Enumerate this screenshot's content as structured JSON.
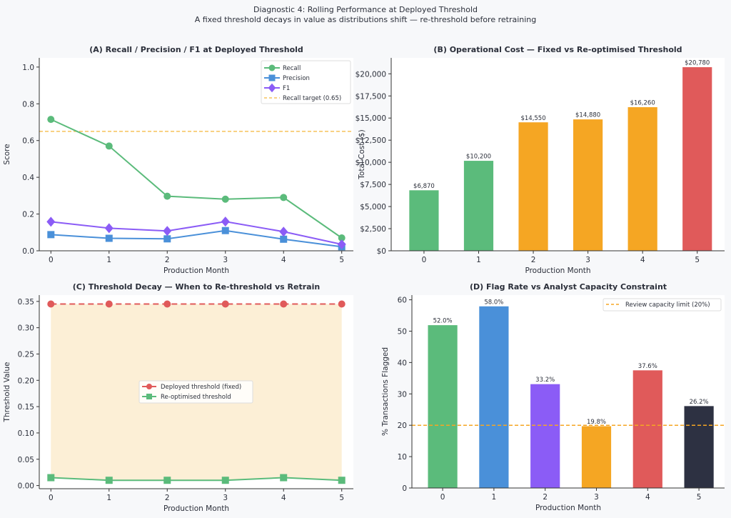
{
  "figure": {
    "title": "Diagnostic 4: Rolling Performance at Deployed Threshold",
    "subtitle": "A fixed threshold decays in value as distributions shift — re-threshold before retraining"
  },
  "chart_data": [
    {
      "id": "A",
      "type": "line",
      "title": "(A) Recall / Precision / F1 at Deployed Threshold",
      "xlabel": "Production Month",
      "ylabel": "Score",
      "x": [
        0,
        1,
        2,
        3,
        4,
        5
      ],
      "xlim": [
        -0.2,
        5.2
      ],
      "ylim": [
        0,
        1.05
      ],
      "yticks": [
        0.0,
        0.2,
        0.4,
        0.6,
        0.8,
        1.0
      ],
      "ytick_labels": [
        "0.0",
        "0.2",
        "0.4",
        "0.6",
        "0.8",
        "1.0"
      ],
      "series": [
        {
          "name": "Recall",
          "values": [
            0.715,
            0.57,
            0.297,
            0.281,
            0.29,
            0.07
          ],
          "color": "#5bbb7b",
          "marker": "circle"
        },
        {
          "name": "Precision",
          "values": [
            0.088,
            0.068,
            0.065,
            0.11,
            0.063,
            0.022
          ],
          "color": "#4a90d9",
          "marker": "square"
        },
        {
          "name": "F1",
          "values": [
            0.158,
            0.123,
            0.108,
            0.159,
            0.104,
            0.035
          ],
          "color": "#8b5cf6",
          "marker": "diamond"
        }
      ],
      "hlines": [
        {
          "name": "Recall target (0.65)",
          "y": 0.65,
          "color": "#f6c35a",
          "style": "dashed"
        }
      ],
      "legend": "top-right",
      "grid": false
    },
    {
      "id": "B",
      "type": "bar",
      "title": "(B) Operational Cost — Fixed vs Re-optimised Threshold",
      "xlabel": "Production Month",
      "ylabel": "Total Cost ($)",
      "categories": [
        "0",
        "1",
        "2",
        "3",
        "4",
        "5"
      ],
      "values": [
        6870,
        10200,
        14550,
        14880,
        16260,
        20780
      ],
      "data_labels": [
        "$6,870",
        "$10,200",
        "$14,550",
        "$14,880",
        "$16,260",
        "$20,780"
      ],
      "colors": [
        "#5bbb7b",
        "#5bbb7b",
        "#f5a623",
        "#f5a623",
        "#f5a623",
        "#e05a5a"
      ],
      "ylim": [
        0,
        21800
      ],
      "yticks": [
        0,
        2500,
        5000,
        7500,
        10000,
        12500,
        15000,
        17500,
        20000
      ],
      "ytick_labels": [
        "$0",
        "$2,500",
        "$5,000",
        "$7,500",
        "$10,000",
        "$12,500",
        "$15,000",
        "$17,500",
        "$20,000"
      ],
      "grid": false
    },
    {
      "id": "C",
      "type": "line",
      "title": "(C) Threshold Decay — When to Re-threshold vs Retrain",
      "xlabel": "Production Month",
      "ylabel": "Threshold Value",
      "x": [
        0,
        1,
        2,
        3,
        4,
        5
      ],
      "xlim": [
        -0.2,
        5.2
      ],
      "ylim": [
        -0.006,
        0.362
      ],
      "yticks": [
        0,
        0.05,
        0.1,
        0.15,
        0.2,
        0.25,
        0.3,
        0.35
      ],
      "ytick_labels": [
        "0.00",
        "0.05",
        "0.10",
        "0.15",
        "0.20",
        "0.25",
        "0.30",
        "0.35"
      ],
      "series": [
        {
          "name": "Deployed threshold (fixed)",
          "values": [
            0.345,
            0.345,
            0.345,
            0.345,
            0.345,
            0.345
          ],
          "color": "#e05a5a",
          "marker": "circle",
          "style": "dashed"
        },
        {
          "name": "Re-optimised threshold",
          "values": [
            0.015,
            0.01,
            0.01,
            0.01,
            0.015,
            0.01
          ],
          "color": "#5bbb7b",
          "marker": "square",
          "style": "solid"
        }
      ],
      "fill_between": {
        "color": "#fcefd6"
      },
      "legend": "center",
      "grid": false
    },
    {
      "id": "D",
      "type": "bar",
      "title": "(D) Flag Rate vs Analyst Capacity Constraint",
      "xlabel": "Production Month",
      "ylabel": "% Transactions Flagged",
      "categories": [
        "0",
        "1",
        "2",
        "3",
        "4",
        "5"
      ],
      "values": [
        52.0,
        58.0,
        33.2,
        19.8,
        37.6,
        26.2
      ],
      "data_labels": [
        "52.0%",
        "58.0%",
        "33.2%",
        "19.8%",
        "37.6%",
        "26.2%"
      ],
      "colors": [
        "#5bbb7b",
        "#4a90d9",
        "#8b5cf6",
        "#f5a623",
        "#e05a5a",
        "#2d3142"
      ],
      "ylim": [
        0,
        61.5
      ],
      "yticks": [
        0,
        10,
        20,
        30,
        40,
        50,
        60
      ],
      "ytick_labels": [
        "0",
        "10",
        "20",
        "30",
        "40",
        "50",
        "60"
      ],
      "hlines": [
        {
          "name": "Review capacity limit (20%)",
          "y": 20,
          "color": "#f5a623",
          "style": "dashed"
        }
      ],
      "legend": "top-right",
      "grid": false
    }
  ]
}
